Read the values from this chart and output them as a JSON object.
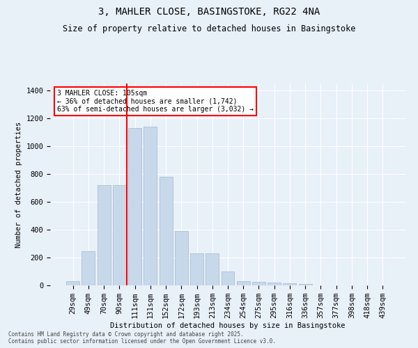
{
  "title_line1": "3, MAHLER CLOSE, BASINGSTOKE, RG22 4NA",
  "title_line2": "Size of property relative to detached houses in Basingstoke",
  "xlabel": "Distribution of detached houses by size in Basingstoke",
  "ylabel": "Number of detached properties",
  "categories": [
    "29sqm",
    "49sqm",
    "70sqm",
    "90sqm",
    "111sqm",
    "131sqm",
    "152sqm",
    "172sqm",
    "193sqm",
    "213sqm",
    "234sqm",
    "254sqm",
    "275sqm",
    "295sqm",
    "316sqm",
    "336sqm",
    "357sqm",
    "377sqm",
    "398sqm",
    "418sqm",
    "439sqm"
  ],
  "values": [
    30,
    245,
    720,
    720,
    1130,
    1140,
    780,
    390,
    230,
    230,
    100,
    30,
    25,
    20,
    15,
    10,
    0,
    0,
    0,
    0,
    0
  ],
  "bar_color": "#c8d8eb",
  "bar_edgecolor": "#a0b8cc",
  "vline_color": "red",
  "vline_x_index": 4,
  "annotation_text": "3 MAHLER CLOSE: 105sqm\n← 36% of detached houses are smaller (1,742)\n63% of semi-detached houses are larger (3,032) →",
  "box_facecolor": "white",
  "box_edgecolor": "red",
  "ylim": [
    0,
    1450
  ],
  "yticks": [
    0,
    200,
    400,
    600,
    800,
    1000,
    1200,
    1400
  ],
  "footer_line1": "Contains HM Land Registry data © Crown copyright and database right 2025.",
  "footer_line2": "Contains public sector information licensed under the Open Government Licence v3.0.",
  "background_color": "#e8f0f8",
  "grid_color": "white",
  "title1_fontsize": 10,
  "title2_fontsize": 8.5,
  "axis_fontsize": 7.5,
  "tick_fontsize": 7.5,
  "annotation_fontsize": 7,
  "footer_fontsize": 5.5
}
